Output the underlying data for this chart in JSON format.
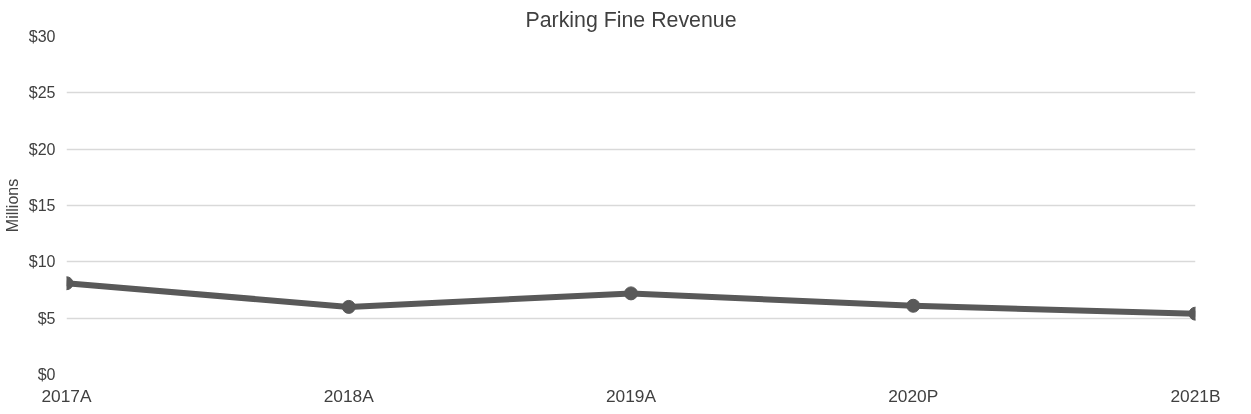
{
  "chart_data": {
    "type": "line",
    "title": "Parking Fine Revenue",
    "ylabel": "Millions",
    "categories": [
      "2017A",
      "2018A",
      "2019A",
      "2020P",
      "2021B"
    ],
    "series": [
      {
        "color": "#595959",
        "values": [
          8.1,
          6.0,
          7.2,
          6.1,
          5.4
        ]
      }
    ],
    "ylim": [
      0,
      30
    ],
    "yticks": [
      {
        "value": 0,
        "label": "$0"
      },
      {
        "value": 5,
        "label": "$5"
      },
      {
        "value": 10,
        "label": "$10"
      },
      {
        "value": 15,
        "label": "$15"
      },
      {
        "value": 20,
        "label": "$20"
      },
      {
        "value": 25,
        "label": "$25"
      },
      {
        "value": 30,
        "label": "$30"
      }
    ],
    "grid": "y",
    "marker": "circle",
    "line_style": "solid"
  }
}
